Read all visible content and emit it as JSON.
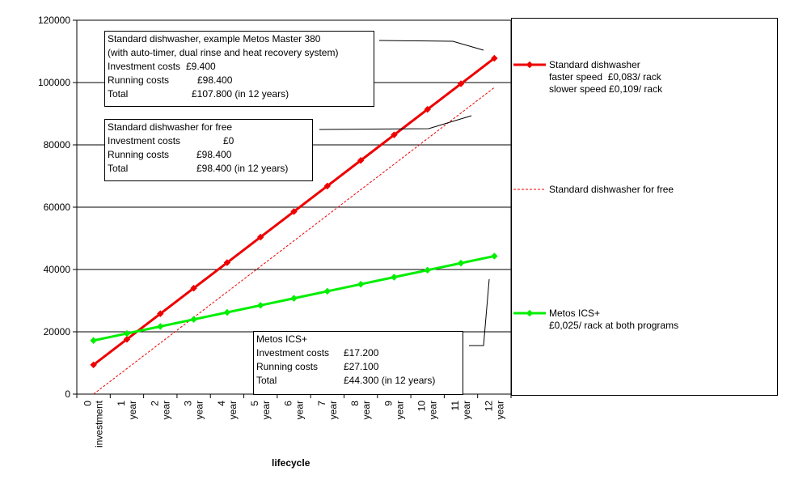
{
  "chart_data": {
    "type": "line",
    "title": "",
    "xlabel": "lifecycle",
    "ylabel": "",
    "ylim": [
      0,
      120000
    ],
    "yticks": [
      0,
      20000,
      40000,
      60000,
      80000,
      100000,
      120000
    ],
    "grid": true,
    "legend_position": "right",
    "categories": [
      "0 investment",
      "1 year",
      "2 year",
      "3 year",
      "4 year",
      "5 year",
      "6 year",
      "7 year",
      "8 year",
      "9 year",
      "10 year",
      "11 year",
      "12 year"
    ],
    "category_numbers": [
      "0",
      "1",
      "2",
      "3",
      "4",
      "5",
      "6",
      "7",
      "8",
      "9",
      "10",
      "11",
      "12"
    ],
    "category_words": [
      "investment",
      "year",
      "year",
      "year",
      "year",
      "year",
      "year",
      "year",
      "year",
      "year",
      "year",
      "year",
      "year"
    ],
    "series": [
      {
        "name": "Standard dishwasher",
        "legend_lines": [
          "Standard dishwasher",
          "faster speed  £0,083/ rack",
          "slower speed £0,109/ rack"
        ],
        "color": "#ee0000",
        "style": "solid-marker",
        "values": [
          9400,
          17600,
          25800,
          34000,
          42200,
          50400,
          58600,
          66800,
          75000,
          83200,
          91400,
          99600,
          107800
        ]
      },
      {
        "name": "Standard dishwasher for free",
        "legend_lines": [
          "Standard dishwasher for free"
        ],
        "color": "#ee0000",
        "style": "dashed",
        "values": [
          0,
          8200,
          16400,
          24600,
          32800,
          41000,
          49200,
          57400,
          65600,
          73800,
          82000,
          90200,
          98400
        ]
      },
      {
        "name": "Metos ICS+",
        "legend_lines": [
          "Metos ICS+",
          "£0,025/ rack at both programs"
        ],
        "color": "#00ee00",
        "style": "solid-marker",
        "values": [
          17200,
          19460,
          21720,
          23980,
          26230,
          28490,
          30750,
          33010,
          35270,
          37530,
          39790,
          42040,
          44300
        ]
      }
    ],
    "annotations": [
      {
        "id": "std",
        "lines": [
          [
            "Standard dishwasher, example Metos Master 380"
          ],
          [
            "(with auto-timer, dual rinse and heat recovery system)"
          ],
          [
            "Investment costs",
            "£9.400"
          ],
          [
            "Running costs",
            "£98.400"
          ],
          [
            "Total",
            "£107.800 (in 12 years)"
          ]
        ]
      },
      {
        "id": "free",
        "lines": [
          [
            "Standard dishwasher for free"
          ],
          [
            "Investment costs",
            "£0"
          ],
          [
            "Running costs",
            "£98.400"
          ],
          [
            "Total",
            "£98.400 (in 12 years)"
          ]
        ]
      },
      {
        "id": "ics",
        "lines": [
          [
            "Metos ICS+"
          ],
          [
            "Investment costs",
            "£17.200"
          ],
          [
            "Running costs",
            "£27.100"
          ],
          [
            "Total",
            " £44.300 (in 12 years)"
          ]
        ]
      }
    ]
  }
}
